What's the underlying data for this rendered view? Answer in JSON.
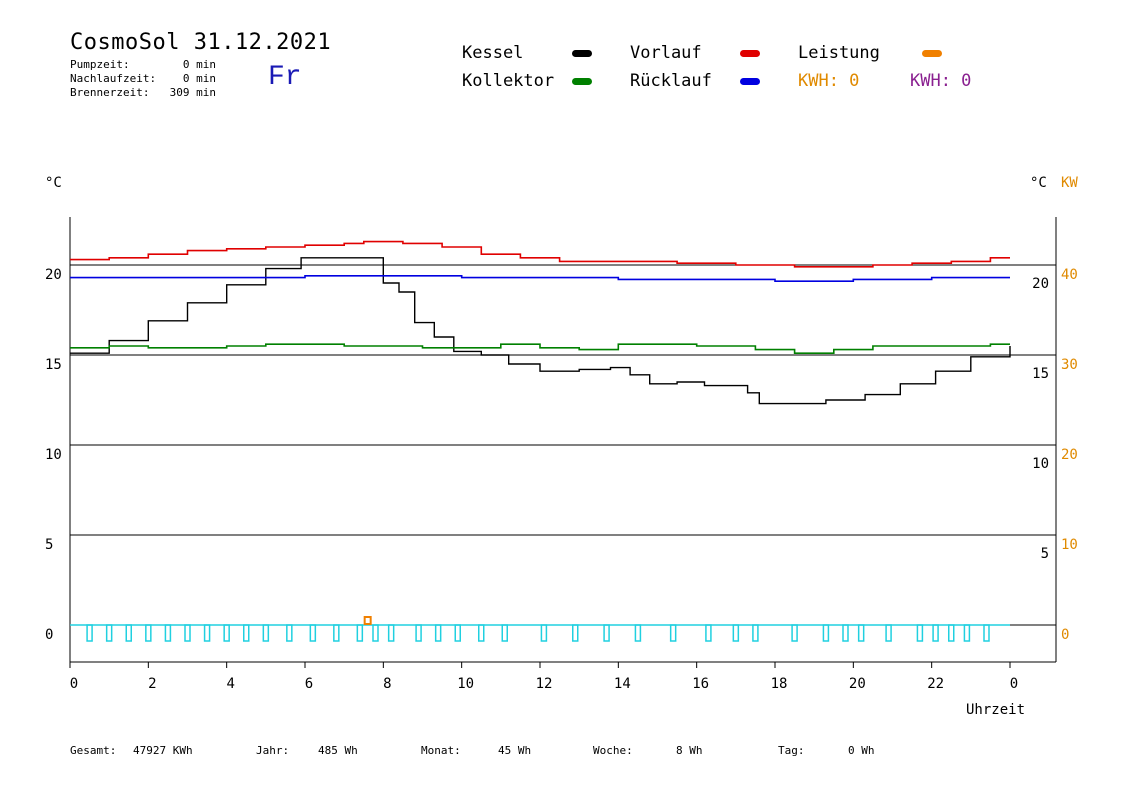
{
  "header": {
    "title": "CosmoSol 31.12.2021",
    "day": "Fr",
    "stats": [
      {
        "label": "Pumpzeit:",
        "value": "0 min"
      },
      {
        "label": "Nachlaufzeit:",
        "value": "0 min"
      },
      {
        "label": "Brennerzeit:",
        "value": "309 min"
      }
    ]
  },
  "legend": {
    "items": [
      {
        "label": "Kessel",
        "color": "#000000"
      },
      {
        "label": "Vorlauf",
        "color": "#e00000"
      },
      {
        "label": "Leistung",
        "color": "#f08000"
      },
      {
        "label": "Kollektor",
        "color": "#008000"
      },
      {
        "label": "Rücklauf",
        "color": "#0000e0"
      }
    ],
    "kwh_left": "KWH: 0",
    "kwh_left_color": "#e08a00",
    "kwh_right": "KWH: 0",
    "kwh_right_color": "#8a2090"
  },
  "axes": {
    "left_unit": "°C",
    "right_unit": "°C",
    "right_unit_kw": "KW",
    "xlabel": "Uhrzeit"
  },
  "footer": {
    "items": [
      {
        "label": "Gesamt:",
        "value": "47927 KWh"
      },
      {
        "label": "Jahr:",
        "value": "485 Wh"
      },
      {
        "label": "Monat:",
        "value": "45 Wh"
      },
      {
        "label": "Woche:",
        "value": "8 Wh"
      },
      {
        "label": "Tag:",
        "value": "0 Wh"
      }
    ]
  },
  "chart_data": {
    "type": "line",
    "x_ticks": [
      "0",
      "2",
      "4",
      "6",
      "8",
      "10",
      "12",
      "14",
      "16",
      "18",
      "20",
      "22",
      "0"
    ],
    "xlim": [
      0,
      24
    ],
    "ylim": [
      -1.5,
      23.5
    ],
    "left_ticks": [
      "0",
      "5",
      "10",
      "15",
      "20"
    ],
    "right_c_ticks": [
      "5",
      "10",
      "15",
      "20"
    ],
    "right_kw_ticks": [
      "0",
      "10",
      "20",
      "30",
      "40"
    ],
    "reference_lines": [
      0,
      5,
      10,
      15,
      20
    ],
    "series": [
      {
        "name": "Kessel",
        "color": "#000000",
        "points": [
          [
            0,
            15.1
          ],
          [
            1,
            15.8
          ],
          [
            2,
            16.9
          ],
          [
            3,
            17.9
          ],
          [
            4,
            18.9
          ],
          [
            5,
            19.8
          ],
          [
            5.9,
            20.4
          ],
          [
            7.8,
            20.4
          ],
          [
            8.0,
            19.0
          ],
          [
            8.4,
            18.5
          ],
          [
            8.8,
            16.8
          ],
          [
            9.3,
            16.0
          ],
          [
            9.8,
            15.2
          ],
          [
            10.5,
            15.0
          ],
          [
            11.2,
            14.5
          ],
          [
            12.0,
            14.1
          ],
          [
            13,
            14.2
          ],
          [
            13.8,
            14.3
          ],
          [
            14.3,
            13.9
          ],
          [
            14.8,
            13.4
          ],
          [
            15.5,
            13.5
          ],
          [
            16.2,
            13.3
          ],
          [
            17.0,
            13.3
          ],
          [
            17.3,
            12.9
          ],
          [
            17.6,
            12.3
          ],
          [
            18.5,
            12.3
          ],
          [
            19.3,
            12.5
          ],
          [
            20.3,
            12.8
          ],
          [
            21.2,
            13.4
          ],
          [
            22.1,
            14.1
          ],
          [
            23.0,
            14.9
          ],
          [
            24,
            15.5
          ]
        ]
      },
      {
        "name": "Vorlauf",
        "color": "#e00000",
        "points": [
          [
            0,
            20.3
          ],
          [
            1,
            20.4
          ],
          [
            2,
            20.6
          ],
          [
            3,
            20.8
          ],
          [
            4,
            20.9
          ],
          [
            5,
            21.0
          ],
          [
            6,
            21.1
          ],
          [
            7,
            21.2
          ],
          [
            7.5,
            21.3
          ],
          [
            8.5,
            21.2
          ],
          [
            9.5,
            21.0
          ],
          [
            10.5,
            20.6
          ],
          [
            11.5,
            20.4
          ],
          [
            12.5,
            20.2
          ],
          [
            14,
            20.2
          ],
          [
            15.5,
            20.1
          ],
          [
            17,
            20.0
          ],
          [
            18.5,
            19.9
          ],
          [
            19.5,
            19.9
          ],
          [
            20.5,
            20.0
          ],
          [
            21.5,
            20.1
          ],
          [
            22.5,
            20.2
          ],
          [
            23.5,
            20.4
          ],
          [
            24,
            20.4
          ]
        ]
      },
      {
        "name": "Rücklauf",
        "color": "#0000e0",
        "points": [
          [
            0,
            19.3
          ],
          [
            2,
            19.3
          ],
          [
            4,
            19.3
          ],
          [
            6,
            19.4
          ],
          [
            8,
            19.4
          ],
          [
            10,
            19.3
          ],
          [
            12,
            19.3
          ],
          [
            14,
            19.2
          ],
          [
            16,
            19.2
          ],
          [
            17,
            19.2
          ],
          [
            18,
            19.1
          ],
          [
            19,
            19.1
          ],
          [
            20,
            19.2
          ],
          [
            21,
            19.2
          ],
          [
            22,
            19.3
          ],
          [
            24,
            19.3
          ]
        ]
      },
      {
        "name": "Kollektor",
        "color": "#008000",
        "points": [
          [
            0,
            15.4
          ],
          [
            1,
            15.5
          ],
          [
            2,
            15.4
          ],
          [
            3,
            15.4
          ],
          [
            4,
            15.5
          ],
          [
            5,
            15.6
          ],
          [
            6,
            15.6
          ],
          [
            7,
            15.5
          ],
          [
            8,
            15.5
          ],
          [
            9,
            15.4
          ],
          [
            10,
            15.4
          ],
          [
            11,
            15.6
          ],
          [
            12,
            15.4
          ],
          [
            13,
            15.3
          ],
          [
            14,
            15.6
          ],
          [
            15,
            15.6
          ],
          [
            16,
            15.5
          ],
          [
            17,
            15.5
          ],
          [
            17.5,
            15.3
          ],
          [
            18.5,
            15.1
          ],
          [
            19.5,
            15.3
          ],
          [
            20.5,
            15.5
          ],
          [
            21.5,
            15.5
          ],
          [
            22.5,
            15.5
          ],
          [
            23.5,
            15.6
          ],
          [
            24,
            15.6
          ]
        ]
      }
    ],
    "pump_pulses": [
      0.5,
      1.0,
      1.5,
      2.0,
      2.5,
      3.0,
      3.5,
      4.0,
      4.5,
      5.0,
      5.6,
      6.2,
      6.8,
      7.4,
      7.8,
      8.2,
      8.9,
      9.4,
      9.9,
      10.5,
      11.1,
      12.1,
      12.9,
      13.7,
      14.5,
      15.4,
      16.3,
      17.0,
      17.5,
      18.5,
      19.3,
      19.8,
      20.2,
      20.9,
      21.7,
      22.1,
      22.5,
      22.9,
      23.4
    ],
    "leistung_marker_x": 7.6
  }
}
